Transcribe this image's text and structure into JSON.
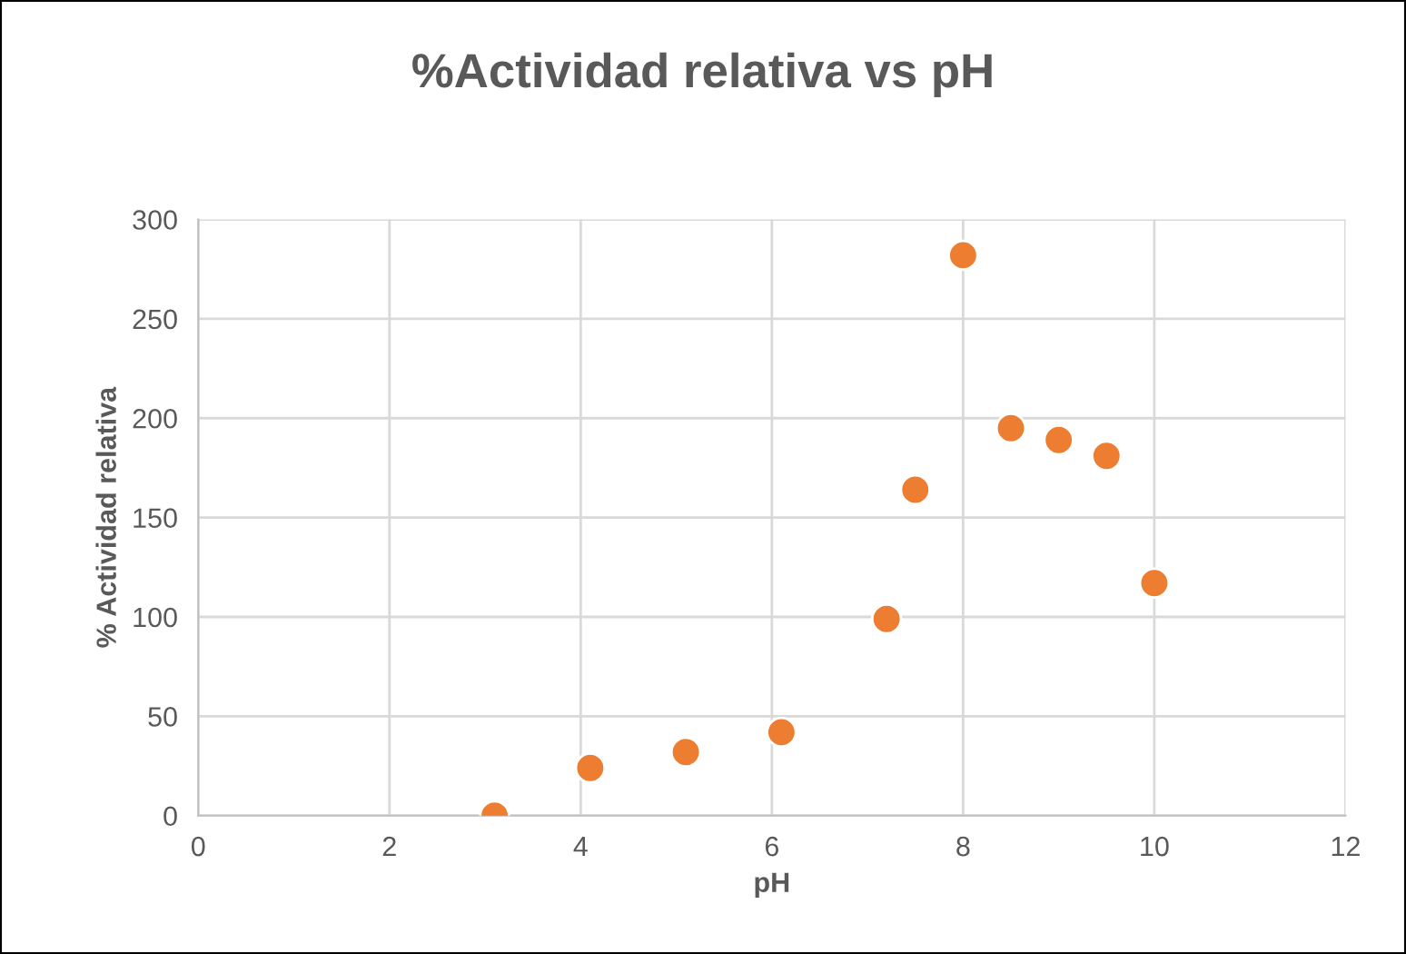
{
  "chart_data": {
    "type": "scatter",
    "title": "%Actividad relativa vs pH",
    "xlabel": "pH",
    "ylabel": "% Actividad relativa",
    "x": [
      3.1,
      4.1,
      5.1,
      6.1,
      7.2,
      7.5,
      8,
      8.5,
      9,
      9.5,
      10
    ],
    "series": [
      {
        "color": "#ed7d31",
        "values": [
          0,
          24,
          32,
          42,
          99,
          164,
          282,
          195,
          189,
          181,
          117
        ]
      }
    ],
    "xlim": [
      0,
      12
    ],
    "xticks": [
      0,
      2,
      4,
      6,
      8,
      10,
      12
    ],
    "ylim": [
      0,
      300
    ],
    "yticks": [
      0,
      50,
      100,
      150,
      200,
      250,
      300
    ],
    "grid": true,
    "marker": "circle",
    "legend": false
  }
}
